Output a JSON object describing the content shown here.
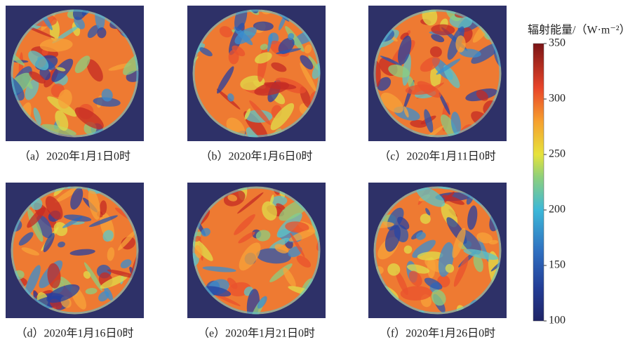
{
  "panels": [
    {
      "caption": "（a）2020年1月1日0时"
    },
    {
      "caption": "（b）2020年1月6日0时"
    },
    {
      "caption": "（c）2020年1月11日0时"
    },
    {
      "caption": "（d）2020年1月16日0时"
    },
    {
      "caption": "（e）2020年1月21日0时"
    },
    {
      "caption": "（f）2020年1月26日0时"
    }
  ],
  "colorbar": {
    "title": "辐射能量/（W·m⁻²）",
    "lim": [
      100,
      350
    ],
    "ticks": [
      100,
      150,
      200,
      250,
      300,
      350
    ]
  }
}
